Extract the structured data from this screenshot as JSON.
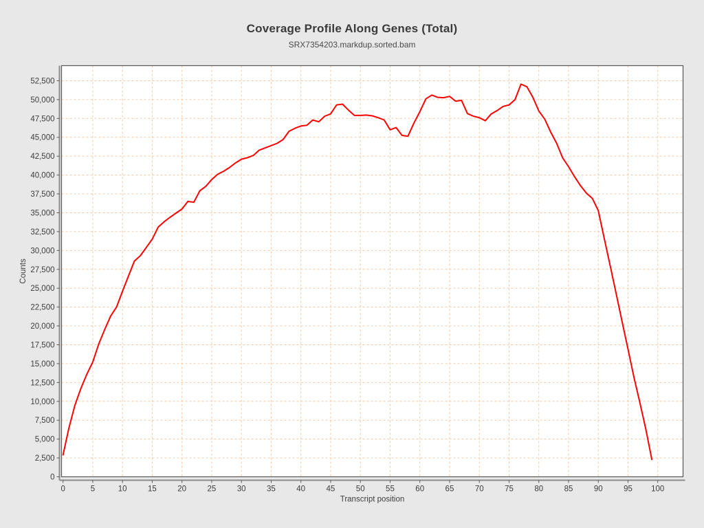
{
  "header": {
    "title": "Coverage Profile Along Genes (Total)",
    "subtitle": "SRX7354203.markdup.sorted.bam"
  },
  "chart_data": {
    "type": "line",
    "title": "Coverage Profile Along Genes (Total)",
    "subtitle": "SRX7354203.markdup.sorted.bam",
    "xlabel": "Transcript position",
    "ylabel": "Counts",
    "legend": "none",
    "grid": true,
    "grid_color": "#f7c9a3",
    "background": "#e8e8e8",
    "plot_background": "#ffffff",
    "border_color": "#565656",
    "axis_color": "#8a8a8a",
    "tick_color": "#5a5a5a",
    "label_color": "#3d3d3d",
    "xlim": [
      -0.25,
      104.25
    ],
    "ylim": [
      0,
      54500
    ],
    "xticks": [
      0,
      5,
      10,
      15,
      20,
      25,
      30,
      35,
      40,
      45,
      50,
      55,
      60,
      65,
      70,
      75,
      80,
      85,
      90,
      95,
      100
    ],
    "yticks": [
      0,
      2500,
      5000,
      7500,
      10000,
      12500,
      15000,
      17500,
      20000,
      22500,
      25000,
      27500,
      30000,
      32500,
      35000,
      37500,
      40000,
      42500,
      45000,
      47500,
      50000,
      52500
    ],
    "x": [
      0,
      1,
      2,
      3,
      4,
      5,
      6,
      7,
      8,
      9,
      10,
      11,
      12,
      13,
      14,
      15,
      16,
      17,
      18,
      19,
      20,
      21,
      22,
      23,
      24,
      25,
      26,
      27,
      28,
      29,
      30,
      31,
      32,
      33,
      34,
      35,
      36,
      37,
      38,
      39,
      40,
      41,
      42,
      43,
      44,
      45,
      46,
      47,
      48,
      49,
      50,
      51,
      52,
      53,
      54,
      55,
      56,
      57,
      58,
      59,
      60,
      61,
      62,
      63,
      64,
      65,
      66,
      67,
      68,
      69,
      70,
      71,
      72,
      73,
      74,
      75,
      76,
      77,
      78,
      79,
      80,
      81,
      82,
      83,
      84,
      85,
      86,
      87,
      88,
      89,
      90,
      91,
      92,
      93,
      94,
      95,
      96,
      97,
      98,
      99
    ],
    "series": [
      {
        "name": "SRX7354203.markdup.sorted.bam",
        "color": "#fe0000",
        "values": [
          2900,
          6500,
          9500,
          11700,
          13600,
          15200,
          17600,
          19500,
          21300,
          22500,
          24600,
          26600,
          28600,
          29300,
          30400,
          31500,
          33100,
          33800,
          34400,
          34950,
          35500,
          36500,
          36400,
          37900,
          38500,
          39400,
          40100,
          40500,
          41000,
          41600,
          42100,
          42300,
          42600,
          43300,
          43600,
          43900,
          44200,
          44700,
          45800,
          46200,
          46500,
          46600,
          47300,
          47050,
          47800,
          48100,
          49300,
          49400,
          48600,
          47900,
          47900,
          47950,
          47850,
          47600,
          47300,
          46000,
          46300,
          45250,
          45150,
          46900,
          48400,
          50100,
          50600,
          50300,
          50250,
          50430,
          49800,
          49900,
          48150,
          47800,
          47600,
          47200,
          48100,
          48550,
          49100,
          49300,
          50000,
          52050,
          51700,
          50300,
          48500,
          47400,
          45700,
          44200,
          42300,
          41100,
          39800,
          38600,
          37600,
          36900,
          35300,
          31600,
          28000,
          24300,
          20600,
          16900,
          13200,
          9800,
          6300,
          2300
        ]
      }
    ]
  }
}
